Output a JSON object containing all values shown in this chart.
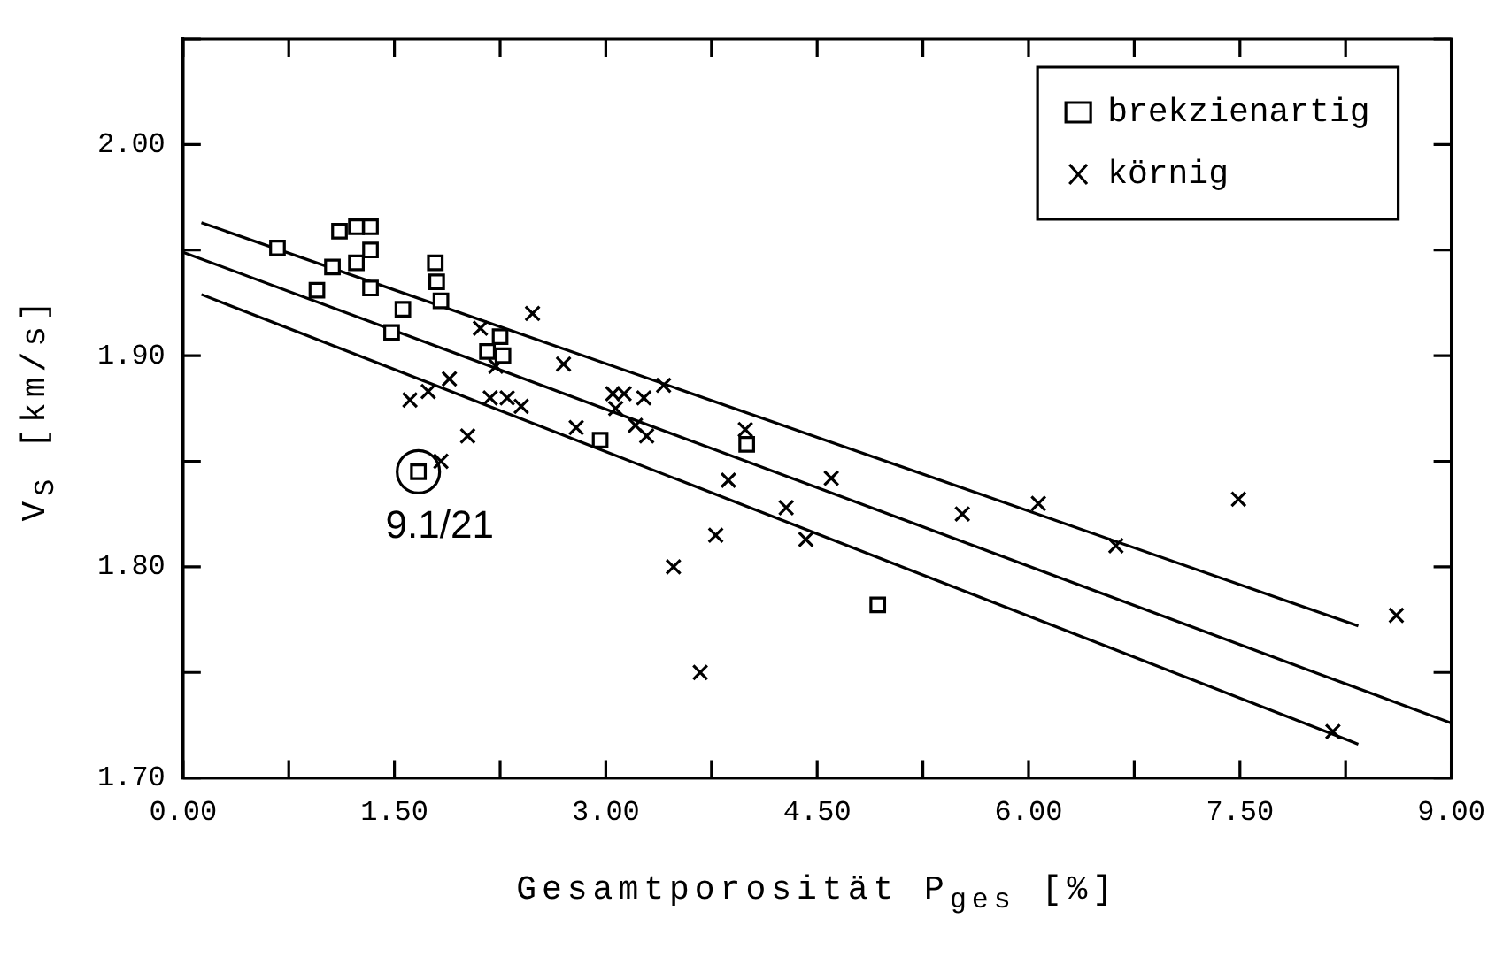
{
  "chart_data": {
    "type": "scatter",
    "xlabel": "Gesamtporosität P$_{ges}$ [%]",
    "ylabel": "V$_{S}$  [km/s]",
    "xlim": [
      0,
      9
    ],
    "ylim": [
      1.7,
      2.05
    ],
    "xticks": [
      {
        "value": 0,
        "label": "0.00"
      },
      {
        "value": 0.75,
        "label": null
      },
      {
        "value": 1.5,
        "label": "1.50"
      },
      {
        "value": 2.25,
        "label": null
      },
      {
        "value": 3,
        "label": "3.00"
      },
      {
        "value": 3.75,
        "label": null
      },
      {
        "value": 4.5,
        "label": "4.50"
      },
      {
        "value": 5.25,
        "label": null
      },
      {
        "value": 6,
        "label": "6.00"
      },
      {
        "value": 6.75,
        "label": null
      },
      {
        "value": 7.5,
        "label": "7.50"
      },
      {
        "value": 8.25,
        "label": null
      },
      {
        "value": 9,
        "label": "9.00"
      }
    ],
    "yticks": [
      {
        "value": 1.7,
        "label": "1.70"
      },
      {
        "value": 1.75,
        "label": null
      },
      {
        "value": 1.8,
        "label": "1.80"
      },
      {
        "value": 1.85,
        "label": null
      },
      {
        "value": 1.9,
        "label": "1.90"
      },
      {
        "value": 1.95,
        "label": null
      },
      {
        "value": 2.0,
        "label": "2.00"
      },
      {
        "value": 2.05,
        "label": null
      }
    ],
    "grid": false,
    "legend": "top right",
    "annotations": [
      {
        "text": "9.1/21",
        "x": 1.67,
        "y": 1.845
      }
    ],
    "series": [
      {
        "name": "brekzienartig",
        "marker": "square",
        "color": "#000000",
        "x": [
          0.67,
          0.95,
          1.06,
          1.11,
          1.23,
          1.23,
          1.33,
          1.33,
          1.33,
          1.56,
          1.48,
          1.79,
          1.8,
          1.83,
          2.25,
          2.16,
          2.27,
          2.96,
          4.0,
          1.67,
          4.93
        ],
        "values": [
          1.951,
          1.931,
          1.942,
          1.959,
          1.961,
          1.944,
          1.961,
          1.95,
          1.932,
          1.922,
          1.911,
          1.944,
          1.935,
          1.926,
          1.909,
          1.902,
          1.9,
          1.86,
          1.858,
          1.845,
          1.782
        ]
      },
      {
        "name": "körnig",
        "marker": "cross",
        "color": "#000000",
        "x": [
          2.48,
          2.11,
          2.22,
          2.7,
          1.89,
          1.74,
          1.61,
          2.18,
          2.3,
          2.4,
          2.02,
          1.83,
          2.79,
          3.05,
          3.13,
          3.27,
          3.41,
          3.07,
          3.21,
          3.29,
          3.99,
          3.87,
          3.78,
          3.48,
          3.67,
          4.6,
          4.28,
          4.42,
          5.53,
          6.07,
          6.62,
          7.49,
          8.61,
          8.16
        ],
        "values": [
          1.92,
          1.913,
          1.895,
          1.896,
          1.889,
          1.883,
          1.879,
          1.88,
          1.88,
          1.876,
          1.862,
          1.85,
          1.866,
          1.882,
          1.882,
          1.88,
          1.886,
          1.875,
          1.867,
          1.862,
          1.865,
          1.841,
          1.815,
          1.8,
          1.75,
          1.842,
          1.828,
          1.813,
          1.825,
          1.83,
          1.81,
          1.832,
          1.777,
          1.722
        ]
      },
      {
        "type": "line",
        "color": "#000000",
        "marker": "none",
        "x": [
          0.13,
          8.34
        ],
        "values": [
          1.963,
          1.772
        ]
      },
      {
        "type": "line",
        "color": "#000000",
        "marker": "none",
        "x": [
          0,
          9
        ],
        "values": [
          1.949,
          1.726
        ]
      },
      {
        "type": "line",
        "color": "#000000",
        "marker": "none",
        "x": [
          0.13,
          8.34
        ],
        "values": [
          1.929,
          1.716
        ]
      }
    ]
  }
}
